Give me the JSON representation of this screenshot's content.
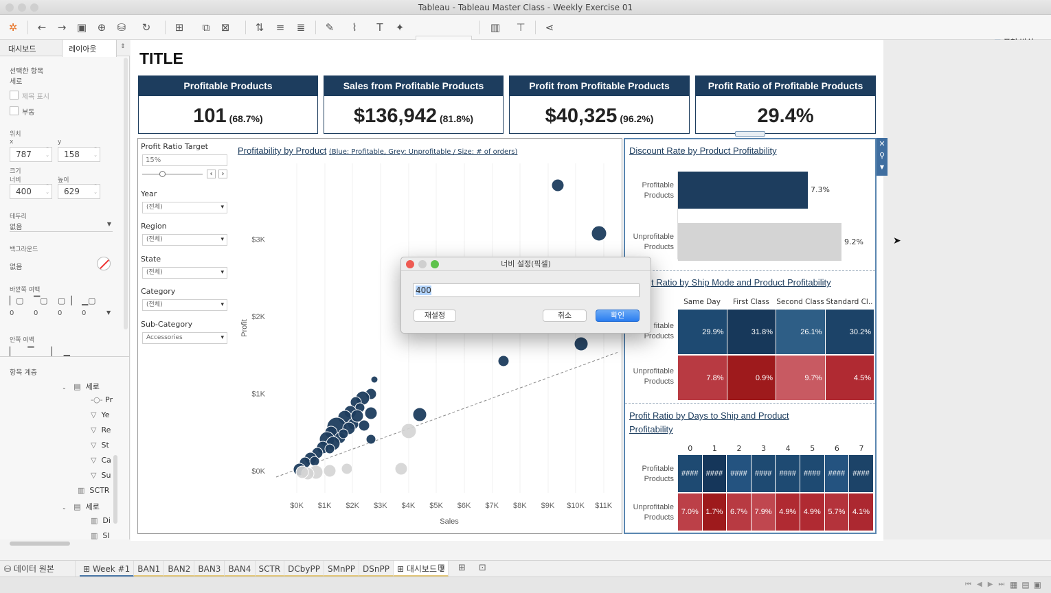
{
  "window": {
    "title": "Tableau - Tableau Master Class - Weekly Exercise 01"
  },
  "toolbar": {
    "presentation_label": "표현 방식"
  },
  "left_panel": {
    "tabs": [
      "대시보드",
      "레이아웃"
    ],
    "selected_item_label": "선택한 항목",
    "selected_item_value": "세로",
    "show_title": "제목 표시",
    "floating": "부동",
    "position_label": "위치",
    "x_label": "x",
    "y_label": "y",
    "x_value": "787",
    "y_value": "158",
    "size_label": "크기",
    "width_label": "너비",
    "height_label": "높이",
    "width_value": "400",
    "height_value": "629",
    "border_label": "테두리",
    "border_value": "없음",
    "background_label": "백그라운드",
    "background_value": "없음",
    "outer_padding_label": "바깥쪽 여백",
    "padding_values": [
      "0",
      "0",
      "0",
      "0"
    ],
    "inner_padding_label": "안쪽 여백",
    "hierarchy_label": "항목 계층",
    "tree": [
      "세로",
      "Pr",
      "Ye",
      "Re",
      "St",
      "Ca",
      "Su",
      "SCTR",
      "세로",
      "Di",
      "SI"
    ]
  },
  "dashboard": {
    "title": "TITLE",
    "kpis": [
      {
        "header": "Profitable Products",
        "value": "101",
        "sub": "(68.7%)"
      },
      {
        "header": "Sales from Profitable Products",
        "value": "$136,942",
        "sub": "(81.8%)"
      },
      {
        "header": "Profit from Profitable Products",
        "value": "$40,325",
        "sub": "(96.2%)"
      },
      {
        "header": "Profit Ratio of Profitable Products",
        "value": "29.4%",
        "sub": ""
      }
    ],
    "filters": {
      "target_label": "Profit Ratio Target",
      "target_value": "15%",
      "year_label": "Year",
      "year_value": "(전체)",
      "region_label": "Region",
      "region_value": "(전체)",
      "state_label": "State",
      "state_value": "(전체)",
      "category_label": "Category",
      "category_value": "(전체)",
      "subcat_label": "Sub-Category",
      "subcat_value": "Accessories"
    },
    "scatter": {
      "title": "Profitability by Product",
      "subtitle": "(Blue: Profitable, Grey: Unprofitable / Size: # of orders)",
      "xlabel": "Sales",
      "ylabel": "Profit",
      "xticks": [
        "$0K",
        "$1K",
        "$2K",
        "$3K",
        "$4K",
        "$5K",
        "$6K",
        "$7K",
        "$8K",
        "$9K",
        "$10K",
        "$11K"
      ],
      "yticks": [
        "$0K",
        "$1K",
        "$2K",
        "$3K"
      ],
      "profitable_color": "#1d3d5e",
      "unprofitable_color": "#d4d4d4"
    },
    "discount": {
      "title": "Discount Rate by Product Profitability",
      "rows": [
        {
          "label1": "Profitable",
          "label2": "Products",
          "value": 7.3,
          "text": "7.3%",
          "color": "#1d3d5e"
        },
        {
          "label1": "Unprofitable",
          "label2": "Products",
          "value": 9.2,
          "text": "9.2%",
          "color": "#d4d4d4"
        }
      ]
    },
    "shipmode": {
      "title": "t Ratio by Ship Mode and Product Profitability",
      "cols": [
        "Same Day",
        "First Class",
        "Second Class",
        "Standard Cl.."
      ],
      "rows": [
        {
          "label1": "fitable",
          "label2": "Products",
          "cells": [
            "29.9%",
            "31.8%",
            "26.1%",
            "30.2%"
          ],
          "colors": [
            "#1e4a72",
            "#17385a",
            "#2e5e86",
            "#1c4368"
          ]
        },
        {
          "label1": "Unprofitable",
          "label2": "Products",
          "cells": [
            "7.8%",
            "0.9%",
            "9.7%",
            "4.5%"
          ],
          "colors": [
            "#b83a42",
            "#9e1a1c",
            "#c85a62",
            "#b02a32"
          ]
        }
      ]
    },
    "daystoship": {
      "title": "Profit Ratio by Days to Ship and Product",
      "title2": "Profitability",
      "cols": [
        "0",
        "1",
        "2",
        "3",
        "4",
        "5",
        "6",
        "7"
      ],
      "rows": [
        {
          "label1": "Profitable",
          "label2": "Products",
          "cells": [
            "####",
            "####",
            "####",
            "####",
            "####",
            "####",
            "####",
            "####"
          ],
          "colors": [
            "#1e4a72",
            "#15365a",
            "#245380",
            "#1e4a72",
            "#1e4a72",
            "#1e4a72",
            "#245380",
            "#1c4368"
          ]
        },
        {
          "label1": "Unprofitable",
          "label2": "Products",
          "cells": [
            "7.0%",
            "1.7%",
            "6.7%",
            "7.9%",
            "4.9%",
            "4.9%",
            "5.7%",
            "4.1%"
          ],
          "colors": [
            "#bc4048",
            "#9e1a1c",
            "#b83a42",
            "#c0474f",
            "#b02a32",
            "#b02a32",
            "#b4333b",
            "#ac2830"
          ]
        }
      ]
    }
  },
  "dialog": {
    "title": "너비 설정(픽셀)",
    "value": "400",
    "reset": "재설정",
    "cancel": "취소",
    "ok": "확인"
  },
  "tabs": {
    "datasource": "데이터 원본",
    "sheets": [
      "Week #1",
      "BAN1",
      "BAN2",
      "BAN3",
      "BAN4",
      "SCTR",
      "DCbyPP",
      "SMnPP",
      "DSnPP",
      "대시보드 2"
    ]
  }
}
